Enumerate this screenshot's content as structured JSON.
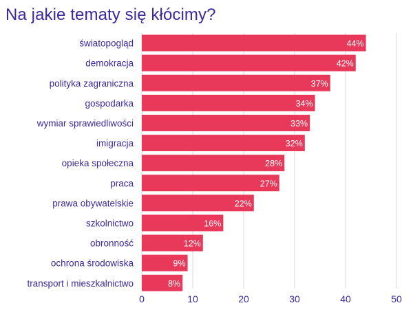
{
  "chart_data": {
    "type": "bar",
    "orientation": "horizontal",
    "title": "Na jakie tematy się kłócimy?",
    "categories": [
      "światopogląd",
      "demokracja",
      "polityka zagraniczna",
      "gospodarka",
      "wymiar sprawiedliwości",
      "imigracja",
      "opieka społeczna",
      "praca",
      "prawa obywatelskie",
      "szkolnictwo",
      "obronność",
      "ochrona środowiska",
      "transport i mieszkalnictwo"
    ],
    "values": [
      44,
      42,
      37,
      34,
      33,
      32,
      28,
      27,
      22,
      16,
      12,
      9,
      8
    ],
    "data_labels": [
      "44%",
      "42%",
      "37%",
      "34%",
      "33%",
      "32%",
      "28%",
      "27%",
      "22%",
      "16%",
      "12%",
      "9%",
      "8%"
    ],
    "xlim": [
      0,
      50
    ],
    "xticks": [
      0,
      10,
      20,
      30,
      40,
      50
    ],
    "grid": "vertical",
    "bar_color": "#e8395a",
    "text_color": "#3b2a9e",
    "grid_color": "#d9d9d9"
  }
}
